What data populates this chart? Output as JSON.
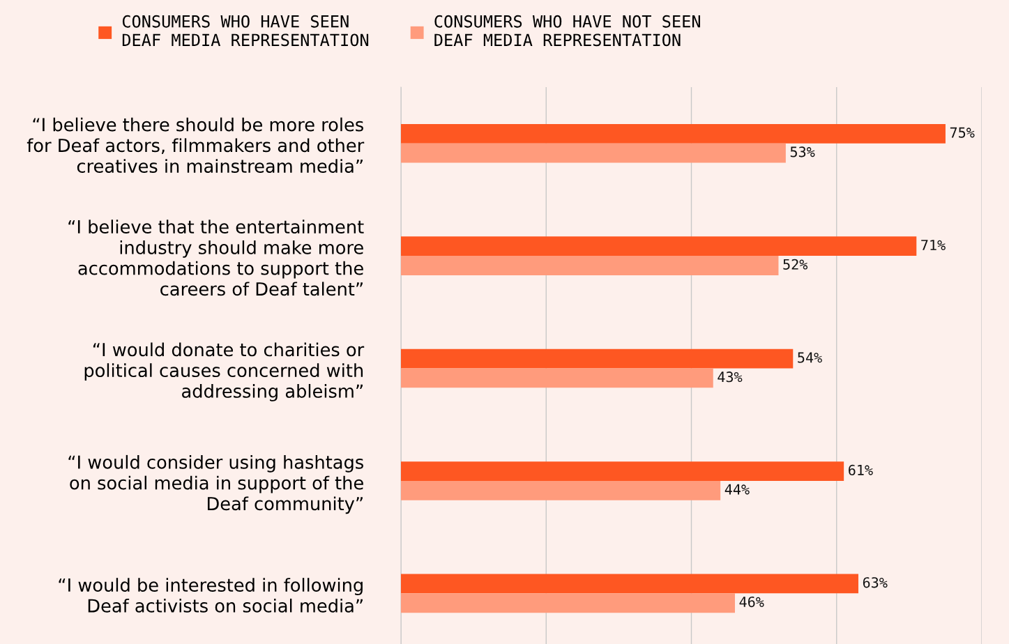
{
  "chart_data": {
    "type": "bar",
    "orientation": "horizontal",
    "categories": [
      "“I believe there should be more roles\nfor Deaf actors, filmmakers and other\ncreatives in mainstream media”",
      "“I believe that the entertainment\nindustry should make more\naccommodations to support the\ncareers of Deaf talent”",
      "“I would donate to charities or\npolitical causes concerned with\naddressing ableism”",
      "“I would consider using hashtags\non social media in support of the\nDeaf community”",
      "“I would be interested in following\nDeaf activists on social media”"
    ],
    "series": [
      {
        "name": "CONSUMERS WHO HAVE SEEN\nDEAF MEDIA REPRESENTATION",
        "color": "#fe5722",
        "values": [
          75,
          71,
          54,
          61,
          63
        ],
        "value_labels": [
          "75%",
          "71%",
          "54%",
          "61%",
          "63%"
        ]
      },
      {
        "name": "CONSUMERS WHO HAVE NOT SEEN\nDEAF MEDIA REPRESENTATION",
        "color": "#ff9b7c",
        "values": [
          53,
          52,
          43,
          44,
          46
        ],
        "value_labels": [
          "53%",
          "52%",
          "43%",
          "44%",
          "46%"
        ]
      }
    ],
    "xlim": [
      0,
      80
    ],
    "xticks": [
      {
        "value": 0,
        "label": null
      },
      {
        "value": 20,
        "label": null
      },
      {
        "value": 40,
        "label": null
      },
      {
        "value": 60,
        "label": null
      },
      {
        "value": 80,
        "label": null
      }
    ],
    "grid": "x",
    "legend": "top",
    "tick_labels": "y"
  }
}
